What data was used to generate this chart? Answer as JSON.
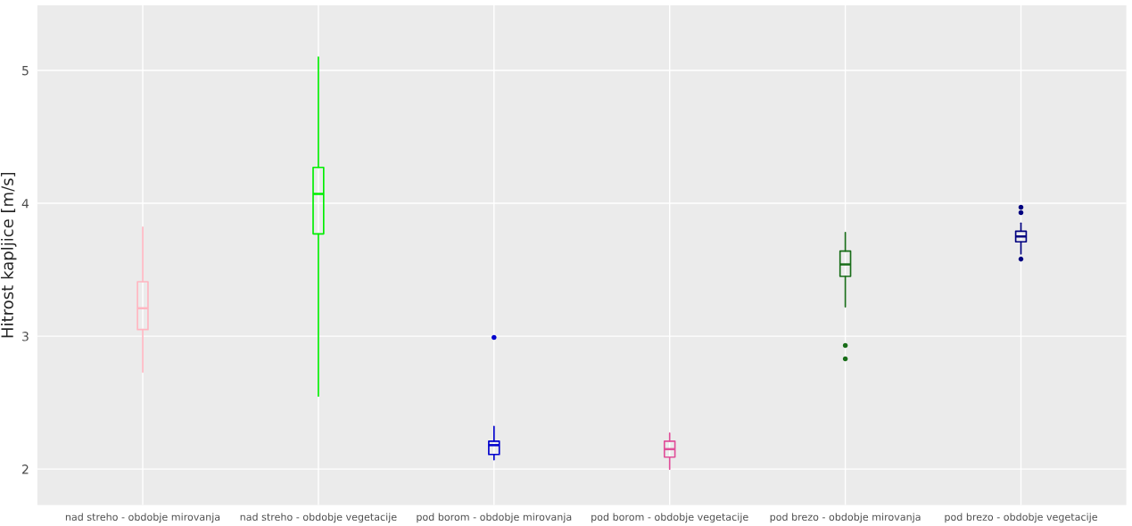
{
  "chart_data": {
    "type": "box",
    "ylabel": "Hitrost kapljice [m/s]",
    "categories": [
      "nad streho - obdobje mirovanja",
      "nad streho - obdobje vegetacije",
      "pod borom - obdobje mirovanja",
      "pod borom - obdobje vegetacije",
      "pod brezo - obdobje mirovanja",
      "pod brezo - obdobje vegetacije"
    ],
    "colors": [
      "#ffb6c1",
      "#00ee00",
      "#0000cd",
      "#e0509a",
      "#1a6e1a",
      "#000080"
    ],
    "boxes": [
      {
        "low": 2.73,
        "q1": 3.05,
        "median": 3.21,
        "q3": 3.41,
        "high": 3.82
      },
      {
        "low": 2.55,
        "q1": 3.77,
        "median": 4.07,
        "q3": 4.27,
        "high": 5.1
      },
      {
        "low": 2.07,
        "q1": 2.11,
        "median": 2.18,
        "q3": 2.21,
        "high": 2.32,
        "outliers": [
          2.99
        ]
      },
      {
        "low": 2.0,
        "q1": 2.09,
        "median": 2.15,
        "q3": 2.21,
        "high": 2.27
      },
      {
        "low": 3.22,
        "q1": 3.45,
        "median": 3.54,
        "q3": 3.64,
        "high": 3.78,
        "outliers": [
          2.93,
          2.83
        ]
      },
      {
        "low": 3.62,
        "q1": 3.71,
        "median": 3.75,
        "q3": 3.79,
        "high": 3.85,
        "outliers": [
          3.97,
          3.93,
          3.58
        ]
      }
    ],
    "ylim": [
      1.73,
      5.49
    ],
    "yticks": [
      2,
      3,
      4,
      5
    ],
    "grid": true
  }
}
